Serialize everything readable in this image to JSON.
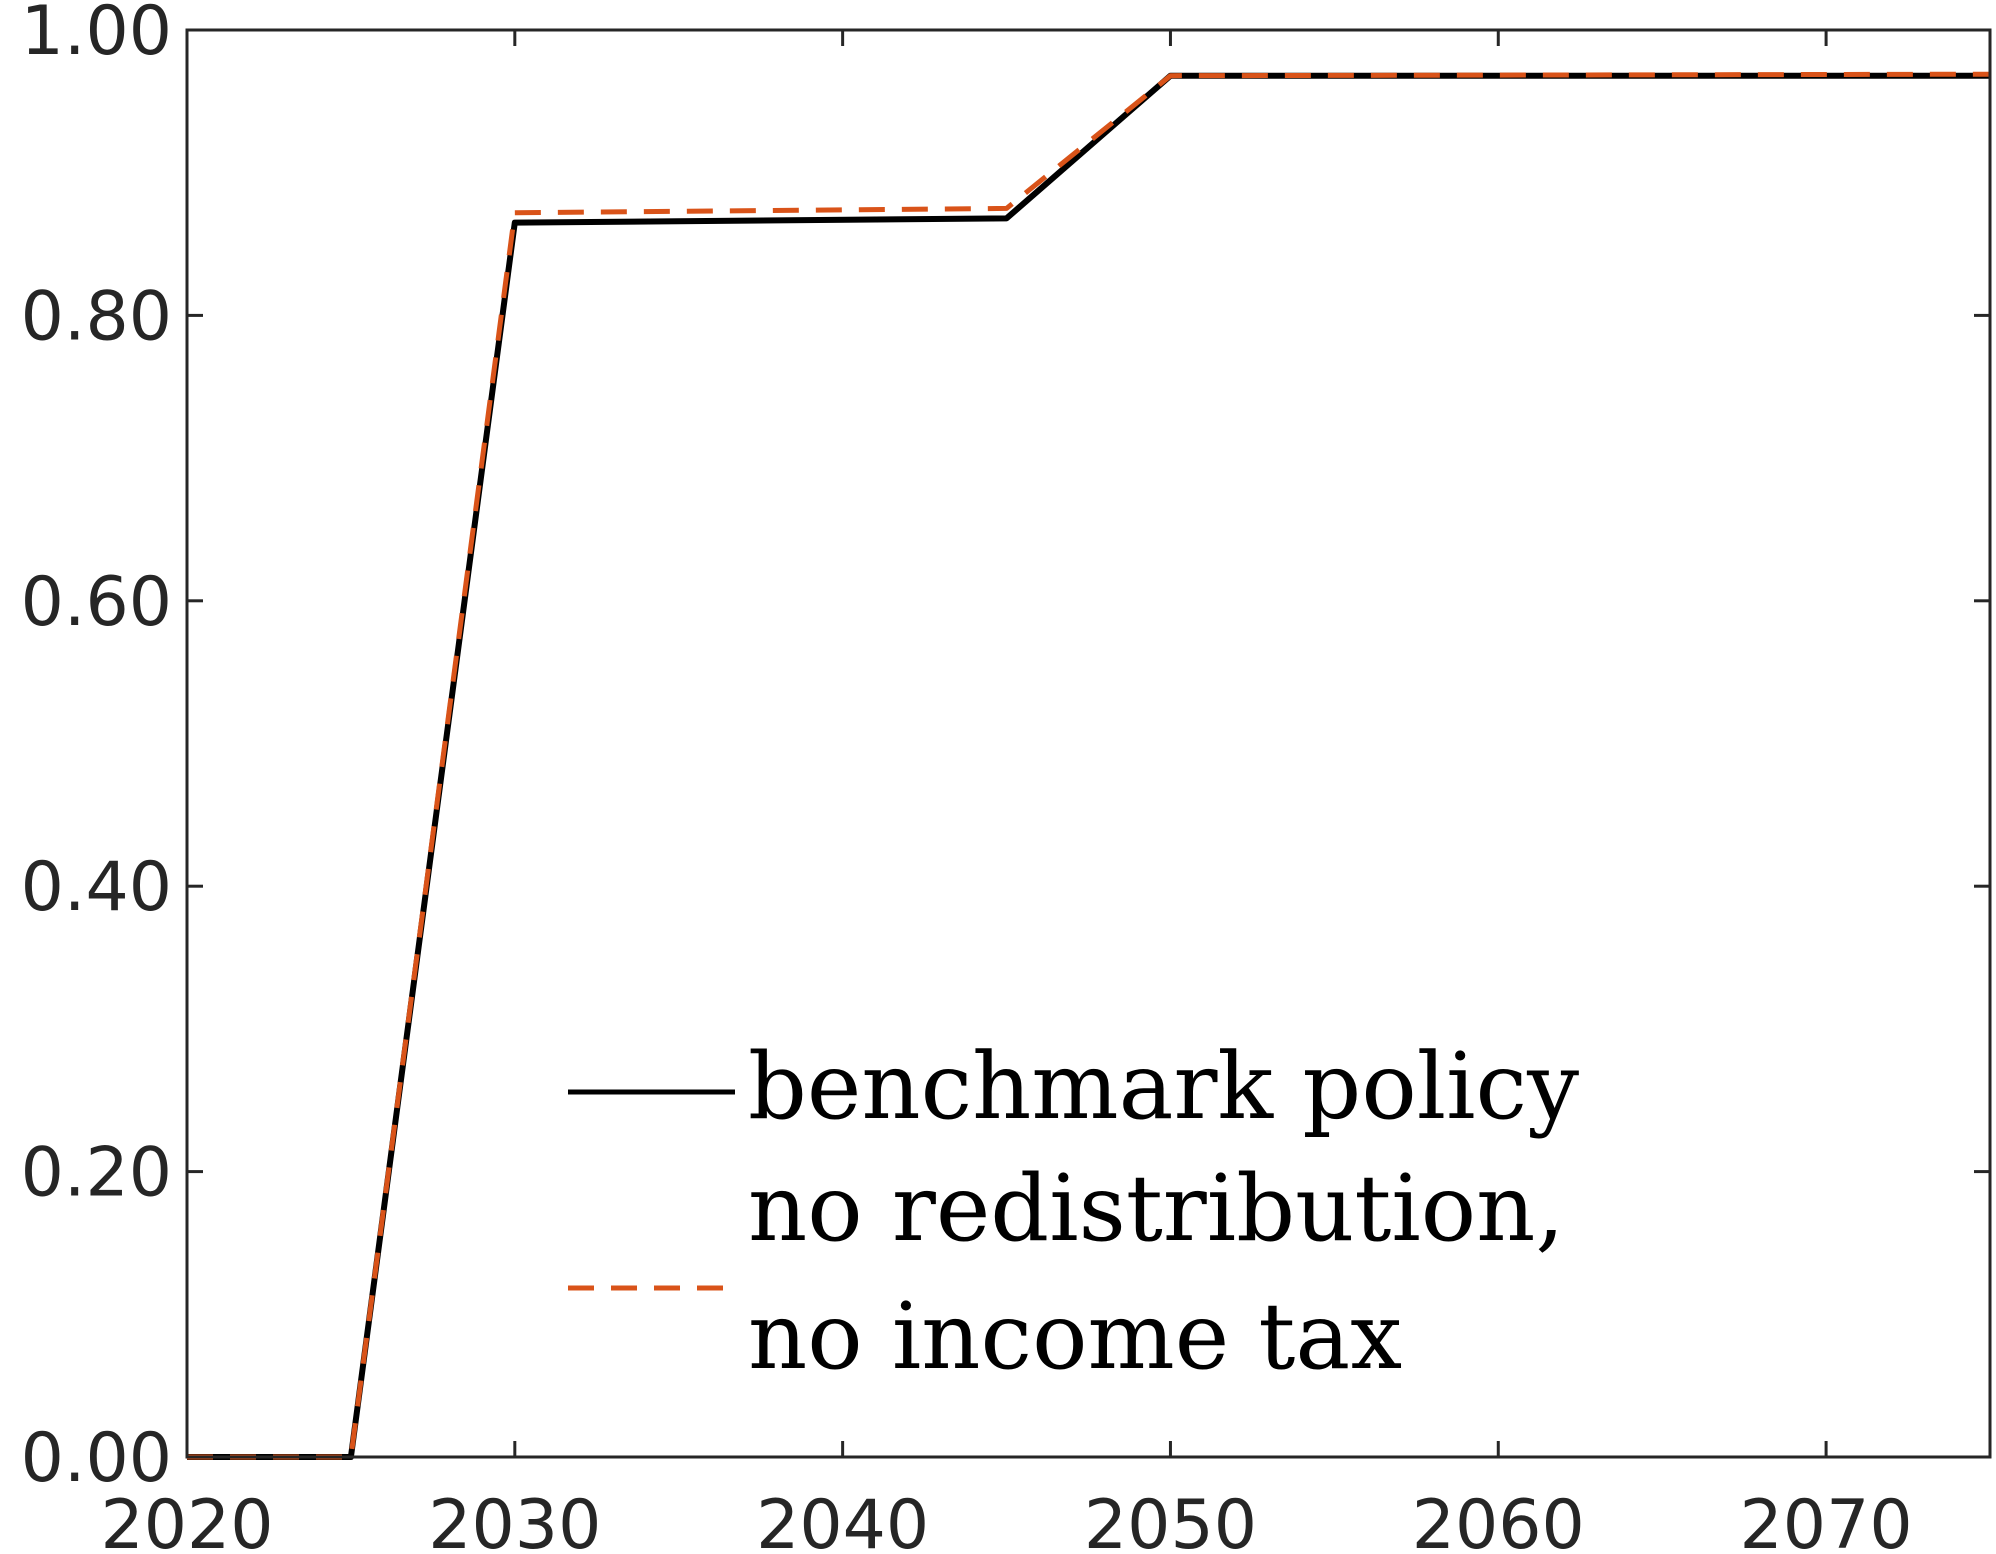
{
  "chart_data": {
    "type": "line",
    "title": "",
    "xlabel": "",
    "ylabel": "",
    "xlim": [
      2020,
      2075
    ],
    "ylim": [
      0,
      1
    ],
    "xticks": [
      2020,
      2030,
      2040,
      2050,
      2060,
      2070
    ],
    "xtick_labels": [
      "2020",
      "2030",
      "2040",
      "2050",
      "2060",
      "2070"
    ],
    "yticks": [
      0,
      0.2,
      0.4,
      0.6,
      0.8,
      1.0
    ],
    "ytick_labels": [
      "0.00",
      "0.20",
      "0.40",
      "0.60",
      "0.80",
      "1.00"
    ],
    "grid": false,
    "legend_position": "bottom-center",
    "series": [
      {
        "name": "benchmark policy",
        "color": "#000000",
        "style": "solid",
        "x": [
          2020,
          2025,
          2030,
          2045,
          2050,
          2075
        ],
        "y": [
          0.0,
          0.0,
          0.865,
          0.868,
          0.968,
          0.968
        ]
      },
      {
        "name": "no redistribution, no income tax",
        "legend_lines": [
          "no redistribution,",
          "no income tax"
        ],
        "color": "#D95319",
        "style": "dashed",
        "x": [
          2020,
          2025,
          2030,
          2045,
          2050,
          2075
        ],
        "y": [
          0.0,
          0.0,
          0.872,
          0.875,
          0.968,
          0.969
        ]
      }
    ]
  }
}
